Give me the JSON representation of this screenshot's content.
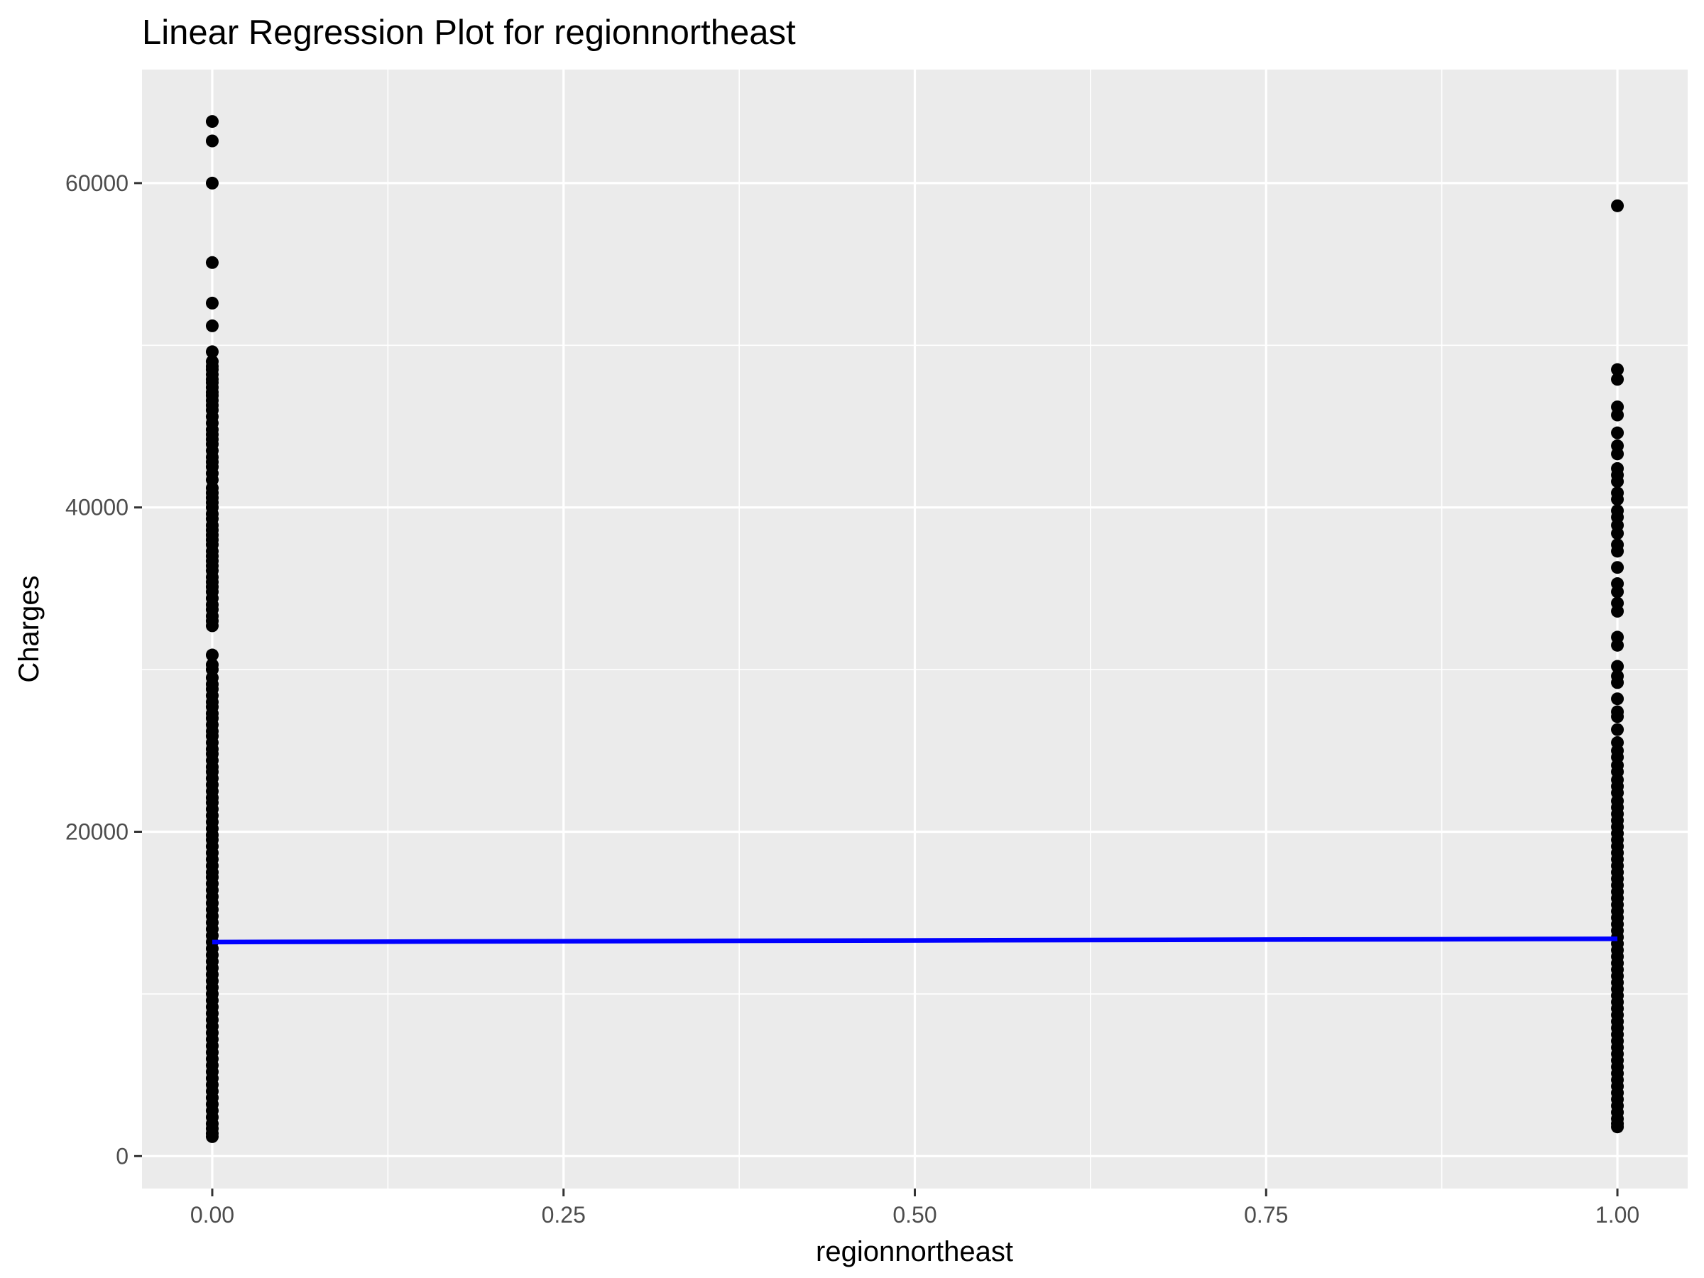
{
  "chart_data": {
    "type": "scatter",
    "title": "Linear Regression Plot for regionnortheast",
    "xlabel": "regionnortheast",
    "ylabel": "Charges",
    "xlim": [
      -0.05,
      1.05
    ],
    "ylim": [
      -2000,
      67000
    ],
    "x_ticks": [
      0.0,
      0.25,
      0.5,
      0.75,
      1.0
    ],
    "x_tick_labels": [
      "0.00",
      "0.25",
      "0.50",
      "0.75",
      "1.00"
    ],
    "y_ticks": [
      0,
      20000,
      40000,
      60000
    ],
    "y_tick_labels": [
      "0",
      "20000",
      "40000",
      "60000"
    ],
    "grid": true,
    "panel_color": "#ebebeb",
    "point_color": "#000000",
    "line_color": "#0000ff",
    "regression_line": {
      "x": [
        0,
        1
      ],
      "y": [
        13200,
        13400
      ]
    },
    "series": [
      {
        "x_value": 0,
        "values": [
          63800,
          62600,
          60000,
          55100,
          52600,
          51200,
          49600,
          49000,
          48700,
          48500,
          48200,
          47900,
          47700,
          47400,
          47100,
          46900,
          46600,
          46300,
          46000,
          45600,
          45200,
          44800,
          44500,
          44200,
          43900,
          43500,
          43100,
          42800,
          42500,
          42100,
          41700,
          41200,
          40900,
          40600,
          40300,
          40000,
          39600,
          39300,
          38900,
          38600,
          38300,
          38000,
          37700,
          37300,
          37000,
          36700,
          36400,
          36100,
          35700,
          35400,
          35100,
          34800,
          34400,
          34000,
          33700,
          33300,
          33000,
          32700,
          30900,
          30300,
          30000,
          29500,
          29100,
          28800,
          28400,
          28000,
          27700,
          27300,
          27000,
          26600,
          26200,
          25900,
          25500,
          25100,
          24800,
          24400,
          24000,
          23700,
          23300,
          22900,
          22500,
          22100,
          21800,
          21400,
          21000,
          20600,
          20200,
          19800,
          19500,
          19100,
          18700,
          18300,
          17900,
          17500,
          17200,
          16800,
          16400,
          16000,
          15600,
          15200,
          14800,
          14400,
          14000,
          13600,
          13200,
          12800,
          12400,
          12000,
          11600,
          11200,
          10800,
          10400,
          10000,
          9600,
          9200,
          8800,
          8400,
          8000,
          7600,
          7200,
          6800,
          6400,
          6000,
          5600,
          5200,
          4800,
          4400,
          4000,
          3600,
          3200,
          2800,
          2400,
          2000,
          1700,
          1400,
          1200
        ]
      },
      {
        "x_value": 1,
        "values": [
          58600,
          48500,
          47900,
          46200,
          45700,
          44600,
          43800,
          43300,
          42400,
          42000,
          41600,
          40900,
          40500,
          39800,
          39400,
          38900,
          38400,
          37700,
          37300,
          36300,
          35300,
          34800,
          34100,
          33600,
          32000,
          31500,
          30200,
          29600,
          29200,
          28200,
          27400,
          27100,
          26300,
          25500,
          25000,
          24600,
          24100,
          23700,
          23200,
          22800,
          22400,
          21900,
          21500,
          21100,
          20700,
          20300,
          19900,
          19500,
          19100,
          18700,
          18300,
          17900,
          17500,
          17100,
          16700,
          16300,
          15900,
          15500,
          15100,
          14700,
          14300,
          13900,
          13500,
          13100,
          12700,
          12300,
          11900,
          11500,
          11100,
          10700,
          10300,
          9900,
          9500,
          9100,
          8700,
          8300,
          7900,
          7500,
          7100,
          6700,
          6300,
          5900,
          5500,
          5100,
          4700,
          4300,
          3900,
          3500,
          3100,
          2700,
          2300,
          2000,
          1800
        ]
      }
    ]
  }
}
